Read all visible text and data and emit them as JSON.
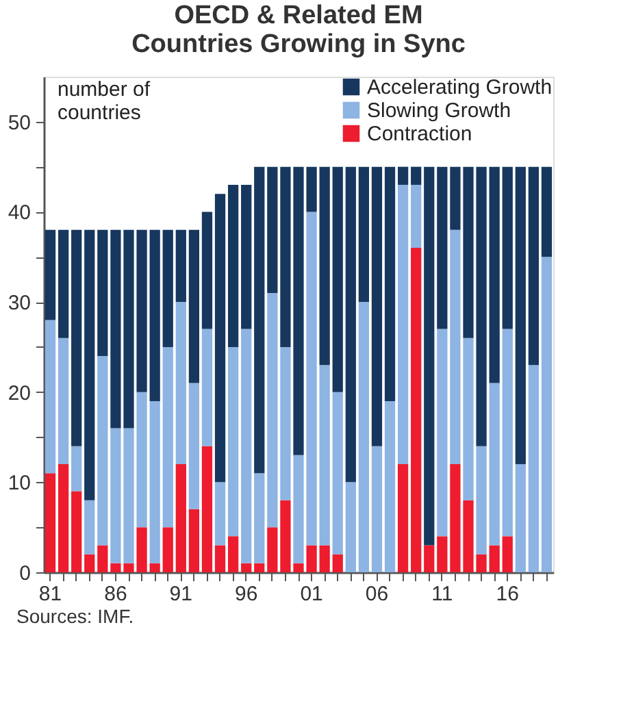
{
  "chart_data": {
    "type": "bar",
    "title": [
      "OECD & Related EM",
      "Countries Growing in Sync"
    ],
    "ylabel": "number of\ncountries",
    "categories": [
      "81",
      null,
      null,
      null,
      null,
      "86",
      null,
      null,
      null,
      null,
      "91",
      null,
      null,
      null,
      null,
      "96",
      null,
      null,
      null,
      null,
      "01",
      null,
      null,
      null,
      null,
      "06",
      null,
      null,
      null,
      null,
      "11",
      null,
      null,
      null,
      null,
      "16",
      null,
      null,
      null
    ],
    "stacked": true,
    "series": [
      {
        "name": "Contraction",
        "color": "#ed1c2e",
        "values": [
          11,
          12,
          9,
          2,
          3,
          1,
          1,
          5,
          1,
          5,
          12,
          7,
          14,
          3,
          4,
          1,
          1,
          5,
          8,
          1,
          3,
          3,
          2,
          0,
          0,
          0,
          0,
          12,
          36,
          3,
          4,
          12,
          8,
          2,
          3,
          4,
          0,
          0,
          0
        ]
      },
      {
        "name": "Slowing Growth",
        "color": "#8db4e2",
        "values": [
          17,
          14,
          5,
          6,
          21,
          15,
          15,
          15,
          18,
          20,
          18,
          14,
          13,
          7,
          21,
          26,
          10,
          26,
          17,
          12,
          37,
          20,
          18,
          10,
          30,
          14,
          19,
          31,
          7,
          0,
          23,
          26,
          18,
          12,
          18,
          23,
          12,
          23,
          35
        ]
      },
      {
        "name": "Accelerating Growth",
        "color": "#17375e",
        "values": [
          10,
          12,
          24,
          30,
          14,
          22,
          22,
          18,
          19,
          13,
          8,
          17,
          13,
          32,
          18,
          16,
          34,
          14,
          20,
          32,
          5,
          22,
          25,
          35,
          15,
          31,
          26,
          2,
          2,
          42,
          18,
          7,
          19,
          31,
          24,
          18,
          33,
          22,
          10
        ]
      }
    ],
    "ylim": [
      0,
      55
    ],
    "yticks": [
      0,
      {
        "value": 5,
        "label": null
      },
      10,
      {
        "value": 15,
        "label": null
      },
      20,
      {
        "value": 25,
        "label": null
      },
      30,
      {
        "value": 35,
        "label": null
      },
      40,
      {
        "value": 45,
        "label": null
      },
      50
    ],
    "legend": "top right",
    "annotations": [
      "Sources: IMF."
    ]
  }
}
